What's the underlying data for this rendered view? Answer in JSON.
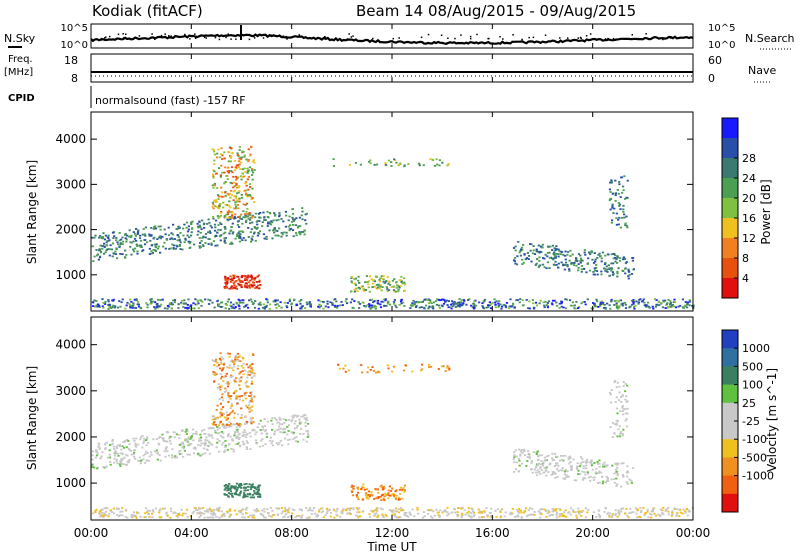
{
  "header": {
    "station": "Kodiak (fitACF)",
    "beam_info": "Beam 14 08/Aug/2015 - 09/Aug/2015"
  },
  "status_panels": {
    "nsky_label": "N.Sky",
    "nsearch_label": "N.Search",
    "nsky_ticks": [
      "10^5",
      "10^0"
    ],
    "nsearch_ticks": [
      "10^5",
      "10^0"
    ],
    "freq_label": "Freq.",
    "freq_unit": "[MHz]",
    "freq_ticks": [
      "18",
      "8"
    ],
    "nave_label": "Nave",
    "nave_ticks": [
      "60",
      "0"
    ],
    "cpid_label": "CPID",
    "cpid_text": "normalsound (fast) -157 RF"
  },
  "chart_data": [
    {
      "type": "heatmap",
      "panel": "power",
      "ylabel": "Slant Range [km]",
      "yticks": [
        1000,
        2000,
        3000,
        4000
      ],
      "ylim": [
        200,
        4600
      ],
      "colorbar_label": "Power [dB]",
      "colorbar_ticks": [
        4,
        8,
        12,
        16,
        20,
        24,
        28
      ],
      "color_scale": [
        "#1a1aff",
        "#2850a8",
        "#3a7a70",
        "#4aa050",
        "#80c040",
        "#f0c020",
        "#f08020",
        "#e85010",
        "#e01010"
      ]
    },
    {
      "type": "heatmap",
      "panel": "velocity",
      "ylabel": "Slant Range [km]",
      "yticks": [
        1000,
        2000,
        3000,
        4000
      ],
      "ylim": [
        200,
        4600
      ],
      "colorbar_label": "Velocity [m s^-1]",
      "colorbar_ticks": [
        1000,
        500,
        100,
        25,
        -25,
        -100,
        -500,
        -1000
      ],
      "color_scale": [
        "#2040c0",
        "#3070a0",
        "#3a8060",
        "#60c040",
        "#c8c8c8",
        "#c8c8c8",
        "#f0c020",
        "#f09020",
        "#f06010",
        "#e01010"
      ]
    }
  ],
  "time_axis": {
    "xlabel": "Time UT",
    "ticks": [
      "00:00",
      "04:00",
      "08:00",
      "12:00",
      "16:00",
      "20:00",
      "00:00"
    ]
  },
  "colors": {
    "power_peak": "#e01010",
    "frame": "#000000"
  }
}
